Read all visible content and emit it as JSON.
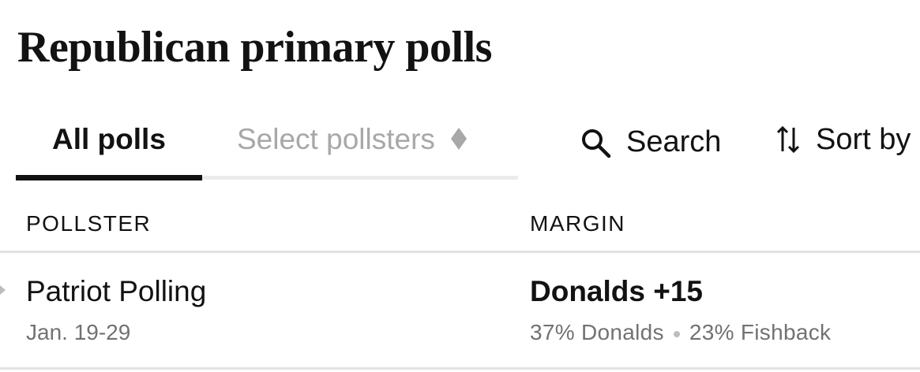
{
  "header": {
    "title": "Republican primary polls"
  },
  "tabs": [
    "All polls",
    "Select pollsters"
  ],
  "toolbar": {
    "search": "Search",
    "sort": "Sort by"
  },
  "table": {
    "columns": [
      "POLLSTER",
      "MARGIN"
    ],
    "rows": [
      {
        "pollster": "Patriot Polling",
        "dates": "Jan. 19-29",
        "margin": "Donalds +15",
        "details": [
          "37% Donalds",
          "23% Fishback"
        ]
      }
    ]
  }
}
